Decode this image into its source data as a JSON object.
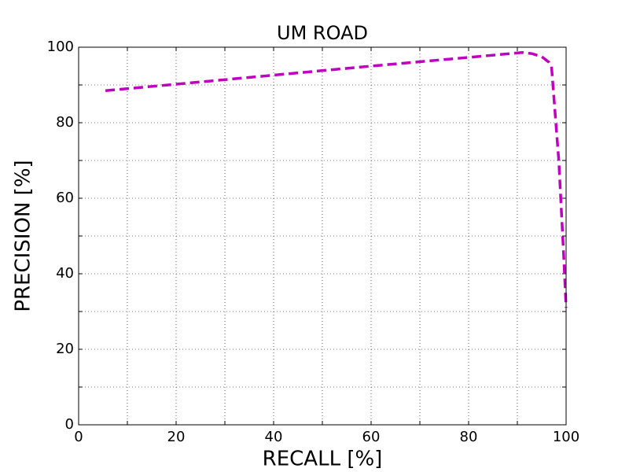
{
  "chart_data": {
    "type": "line",
    "title": "UM ROAD",
    "x_label": "RECALL [%]",
    "y_label": "PRECISION [%]",
    "x": [
      5.5,
      20,
      40,
      60,
      80,
      91,
      93,
      95,
      96.5,
      97,
      98.5,
      99.5,
      100
    ],
    "series": [
      {
        "color": "#bf00bf",
        "values": [
          88.5,
          90.2,
          92.6,
          95.0,
          97.3,
          98.6,
          98.3,
          97.5,
          96,
          95,
          70,
          45,
          31
        ]
      }
    ],
    "xlim": [
      0,
      100
    ],
    "ylim": [
      0,
      100
    ],
    "xticks": [
      0,
      20,
      40,
      60,
      80,
      100
    ],
    "yticks": [
      0,
      20,
      40,
      60,
      80,
      100
    ],
    "x_minor_ticks": [
      10,
      30,
      50,
      70,
      90
    ],
    "y_minor_ticks": [
      10,
      30,
      50,
      70,
      90
    ],
    "grid": true,
    "line_style": "dashed"
  }
}
